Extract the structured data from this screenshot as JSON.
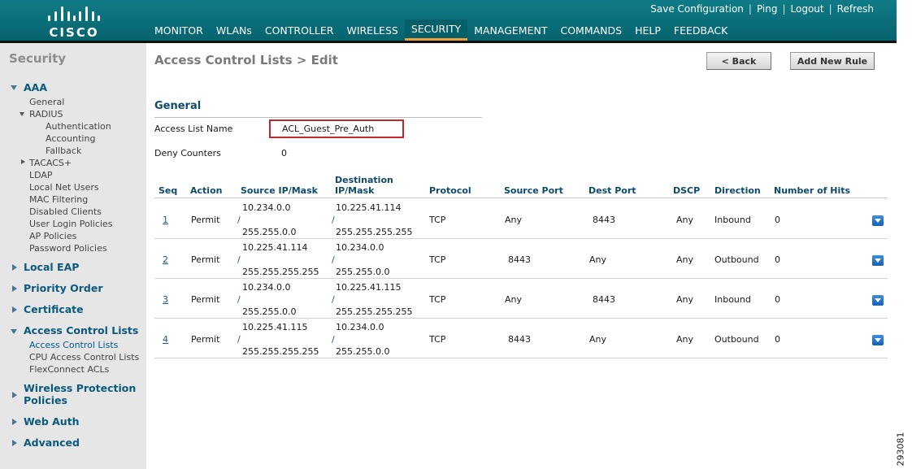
{
  "header": {
    "logo_text": "CISCO",
    "utility_links": [
      "Save Configuration",
      "Ping",
      "Logout",
      "Refresh"
    ],
    "nav_tabs": [
      "MONITOR",
      "WLANs",
      "CONTROLLER",
      "WIRELESS",
      "SECURITY",
      "MANAGEMENT",
      "COMMANDS",
      "HELP",
      "FEEDBACK"
    ],
    "active_tab": "SECURITY",
    "colors": {
      "bar": "#0b7280",
      "active_underline": "#e8a23c"
    }
  },
  "sidebar": {
    "title": "Security",
    "aaa": "AAA",
    "aaa_items": {
      "general": "General",
      "radius": "RADIUS",
      "authentication": "Authentication",
      "accounting": "Accounting",
      "fallback": "Fallback",
      "tacacs": "TACACS+",
      "ldap": "LDAP",
      "local_net_users": "Local Net Users",
      "mac_filtering": "MAC Filtering",
      "disabled_clients": "Disabled Clients",
      "user_login_policies": "User Login Policies",
      "ap_policies": "AP Policies",
      "password_policies": "Password Policies"
    },
    "local_eap": "Local EAP",
    "priority_order": "Priority Order",
    "certificate": "Certificate",
    "acl_section": "Access Control Lists",
    "acl_items": {
      "acl": "Access Control Lists",
      "cpu_acl": "CPU Access Control Lists",
      "flexconnect": "FlexConnect ACLs"
    },
    "wireless_protection_1": "Wireless Protection",
    "wireless_protection_2": "Policies",
    "web_auth": "Web Auth",
    "advanced": "Advanced"
  },
  "page": {
    "title": "Access Control Lists > Edit",
    "back_label": "< Back",
    "add_rule_label": "Add New Rule",
    "section_title": "General",
    "acl_name_label": "Access List Name",
    "acl_name_value": "ACL_Guest_Pre_Auth",
    "deny_label": "Deny Counters",
    "deny_value": "0"
  },
  "table": {
    "headers": {
      "seq": "Seq",
      "action": "Action",
      "source": "Source IP/Mask",
      "dest_1": "Destination",
      "dest_2": "IP/Mask",
      "protocol": "Protocol",
      "source_port": "Source Port",
      "dest_port": "Dest Port",
      "dscp": "DSCP",
      "direction": "Direction",
      "hits": "Number of Hits"
    },
    "rows": [
      {
        "seq": "1",
        "action": "Permit",
        "src_ip": "10.234.0.0",
        "src_mask": "255.255.0.0",
        "dst_ip": "10.225.41.114",
        "dst_mask": "255.255.255.255",
        "protocol": "TCP",
        "src_port": "Any",
        "dst_port": "8443",
        "dscp": "Any",
        "direction": "Inbound",
        "hits": "0"
      },
      {
        "seq": "2",
        "action": "Permit",
        "src_ip": "10.225.41.114",
        "src_mask": "255.255.255.255",
        "dst_ip": "10.234.0.0",
        "dst_mask": "255.255.0.0",
        "protocol": "TCP",
        "src_port": "8443",
        "dst_port": "Any",
        "dscp": "Any",
        "direction": "Outbound",
        "hits": "0"
      },
      {
        "seq": "3",
        "action": "Permit",
        "src_ip": "10.234.0.0",
        "src_mask": "255.255.0.0",
        "dst_ip": "10.225.41.115",
        "dst_mask": "255.255.255.255",
        "protocol": "TCP",
        "src_port": "Any",
        "dst_port": "8443",
        "dscp": "Any",
        "direction": "Inbound",
        "hits": "0"
      },
      {
        "seq": "4",
        "action": "Permit",
        "src_ip": "10.225.41.115",
        "src_mask": "255.255.255.255",
        "dst_ip": "10.234.0.0",
        "dst_mask": "255.255.0.0",
        "protocol": "TCP",
        "src_port": "8443",
        "dst_port": "Any",
        "dscp": "Any",
        "direction": "Outbound",
        "hits": "0"
      }
    ]
  },
  "figure_number": "293081"
}
